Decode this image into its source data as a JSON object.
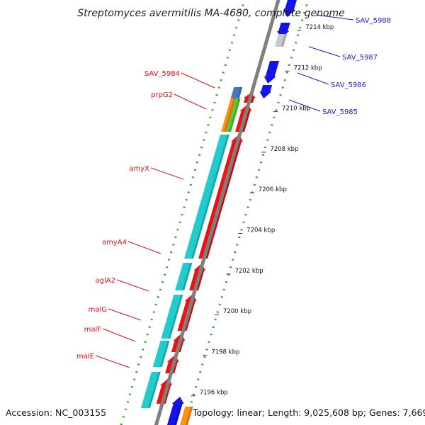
{
  "title": "Streptomyces avermitilis MA-4680, complete genome",
  "accession": "Accession: NC_003155",
  "summary": "Topology: linear; Length: 9,025,608 bp; Genes: 7,669",
  "colors": {
    "backbone": "#7f7f7f",
    "dots": "#2e9b2e",
    "forward_gene": "#1414e8",
    "reverse_gene": "#ee1111",
    "cds_cyan": "#22cccc",
    "label_red": "#dd1111",
    "label_blue": "#1a1acc",
    "gray_feature": "#c8c8c8",
    "orange_feature": "#ff9010",
    "green_feature": "#55cc33",
    "steelblue_feature": "#4a78c0"
  },
  "ticks": [
    {
      "kbp": 7214,
      "label": "7214 kbp"
    },
    {
      "kbp": 7212,
      "label": "7212 kbp"
    },
    {
      "kbp": 7210,
      "label": "7210 kbp"
    },
    {
      "kbp": 7208,
      "label": "7208 kbp"
    },
    {
      "kbp": 7206,
      "label": "7206 kbp"
    },
    {
      "kbp": 7204,
      "label": "7204 kbp"
    },
    {
      "kbp": 7202,
      "label": "7202 kbp"
    },
    {
      "kbp": 7200,
      "label": "7200 kbp"
    },
    {
      "kbp": 7198,
      "label": "7198 kbp"
    },
    {
      "kbp": 7196,
      "label": "7196 kbp"
    }
  ],
  "forward_labels": [
    "SAV_5988",
    "SAV_5987",
    "SAV_5986",
    "SAV_5985"
  ],
  "reverse_labels": [
    "SAV_5984",
    "prpG2",
    "amyX",
    "amyA4",
    "aglA2",
    "malG",
    "malF",
    "malE"
  ]
}
